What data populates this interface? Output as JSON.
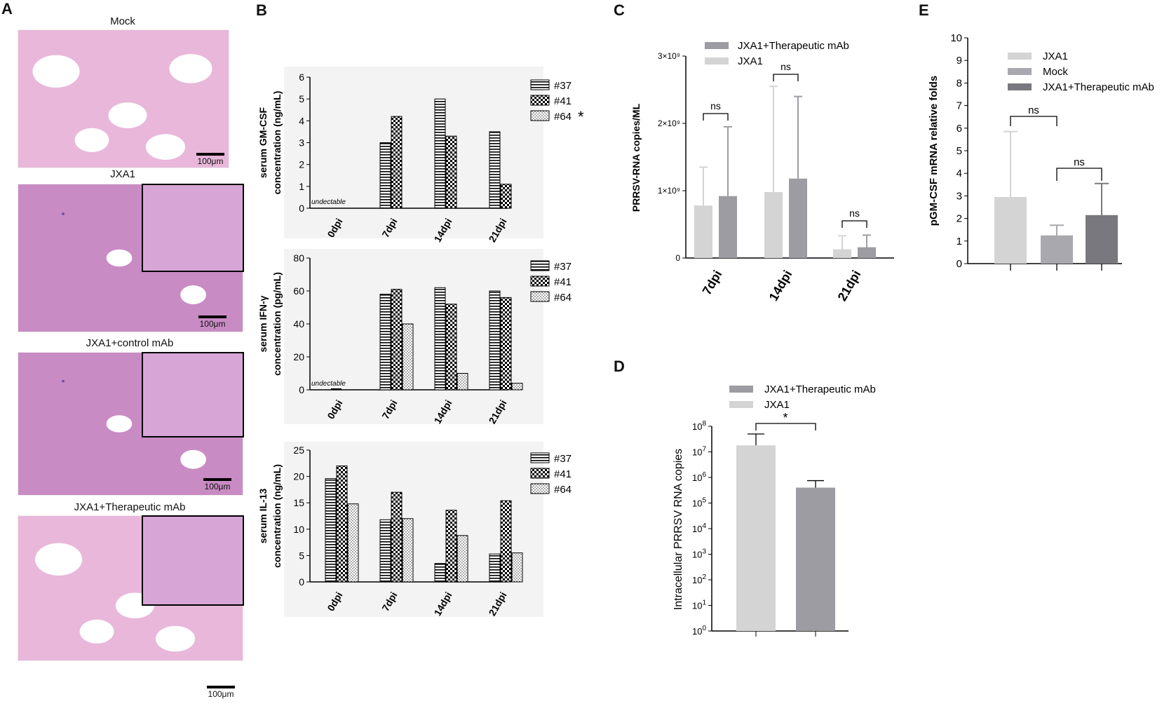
{
  "panelA": {
    "letter": "A",
    "titles": [
      "Mock",
      "JXA1",
      "JXA1+control mAb",
      "JXA1+Therapeutic mAb"
    ],
    "scale_label": "100μm"
  },
  "panelB": {
    "letter": "B",
    "undetectable_label": "undectable"
  },
  "panelC": {
    "letter": "C"
  },
  "panelD": {
    "letter": "D"
  },
  "panelE": {
    "letter": "E"
  },
  "chart_data": [
    {
      "id": "B1",
      "type": "bar",
      "ylabel": "serum GM-CSF\nconcentration (ng/mL)",
      "categories": [
        "0dpi",
        "7dpi",
        "14dpi",
        "21dpi"
      ],
      "series": [
        {
          "name": "#37",
          "pattern": "hstripes",
          "values": [
            0,
            3.0,
            5.0,
            3.5
          ]
        },
        {
          "name": "#41",
          "pattern": "checker",
          "values": [
            0,
            4.2,
            3.3,
            1.1
          ]
        },
        {
          "name": "#64",
          "pattern": "dots",
          "values": [
            0,
            null,
            null,
            null
          ]
        }
      ],
      "legend_star": "*",
      "ylim": [
        0,
        6
      ],
      "yticks": [
        0,
        1,
        2,
        3,
        4,
        5,
        6
      ],
      "annotations": [
        "undectable"
      ]
    },
    {
      "id": "B2",
      "type": "bar",
      "ylabel": "serum IFN-γ\nconcentration (pg/mL)",
      "categories": [
        "0dpi",
        "7dpi",
        "14dpi",
        "21dpi"
      ],
      "series": [
        {
          "name": "#37",
          "pattern": "hstripes",
          "values": [
            0,
            58,
            62,
            60
          ]
        },
        {
          "name": "#41",
          "pattern": "checker",
          "values": [
            0,
            61,
            52,
            56
          ]
        },
        {
          "name": "#64",
          "pattern": "dots",
          "values": [
            0,
            40,
            10,
            4
          ]
        }
      ],
      "ylim": [
        0,
        80
      ],
      "yticks": [
        0,
        20,
        40,
        60,
        80
      ],
      "annotations": [
        "undectable"
      ]
    },
    {
      "id": "B3",
      "type": "bar",
      "ylabel": "serum IL-13\nconcentration (ng/mL)",
      "categories": [
        "0dpi",
        "7dpi",
        "14dpi",
        "21dpi"
      ],
      "series": [
        {
          "name": "#37",
          "pattern": "hstripes",
          "values": [
            19.6,
            11.8,
            3.5,
            5.3
          ]
        },
        {
          "name": "#41",
          "pattern": "checker",
          "values": [
            22.0,
            17.0,
            13.6,
            15.4
          ]
        },
        {
          "name": "#64",
          "pattern": "dots",
          "values": [
            14.8,
            12.0,
            8.8,
            5.5
          ]
        }
      ],
      "ylim": [
        0,
        25
      ],
      "yticks": [
        0,
        5,
        10,
        15,
        20,
        25
      ]
    },
    {
      "id": "C",
      "type": "bar",
      "ylabel": "PRRSV-RNA copies/ML",
      "categories": [
        "7dpi",
        "14dpi",
        "21dpi"
      ],
      "series": [
        {
          "name": "JXA1",
          "color": "#d4d4d4",
          "values": [
            0.78,
            0.98,
            0.13
          ],
          "errors": [
            0.57,
            1.57,
            0.2
          ]
        },
        {
          "name": "JXA1+Therapeutic mAb",
          "color": "#9c9ca2",
          "values": [
            0.92,
            1.18,
            0.16
          ],
          "errors": [
            1.03,
            1.22,
            0.18
          ]
        }
      ],
      "legend_order": [
        "JXA1+Therapeutic mAb",
        "JXA1"
      ],
      "ylim": [
        0,
        3
      ],
      "ytick_values": [
        0,
        1,
        2,
        3
      ],
      "ytick_labels": [
        "0",
        "1×10⁹",
        "2×10⁹",
        "3×10⁹"
      ],
      "annotations": [
        "ns",
        "ns",
        "ns"
      ]
    },
    {
      "id": "D",
      "type": "bar",
      "ylabel": "Intracellular PRRSV RNA copies",
      "yscale": "log",
      "series": [
        {
          "name": "JXA1",
          "color": "#d4d4d4",
          "value": 18000000,
          "error_top": 50000000
        },
        {
          "name": "JXA1+Therapeutic mAb",
          "color": "#9c9ca2",
          "value": 400000,
          "error_top": 750000
        }
      ],
      "legend_order": [
        "JXA1+Therapeutic mAb",
        "JXA1"
      ],
      "ylim": [
        1,
        100000000
      ],
      "ytick_exponents": [
        "0",
        "1",
        "2",
        "3",
        "4",
        "5",
        "6",
        "7",
        "8"
      ],
      "ytick_base": "10",
      "annotations": [
        "*"
      ]
    },
    {
      "id": "E",
      "type": "bar",
      "ylabel": "pGM-CSF mRNA relative folds",
      "series": [
        {
          "name": "JXA1",
          "color": "#d4d4d4",
          "value": 2.95,
          "error": 2.9
        },
        {
          "name": "Mock",
          "color": "#a8a8ae",
          "value": 1.25,
          "error": 0.45
        },
        {
          "name": "JXA1+Therapeutic mAb",
          "color": "#78787e",
          "value": 2.15,
          "error": 1.4
        }
      ],
      "ylim": [
        0,
        10
      ],
      "yticks": [
        0,
        1,
        2,
        3,
        4,
        5,
        6,
        7,
        8,
        9,
        10
      ],
      "annotations": [
        "ns",
        "ns"
      ]
    }
  ]
}
